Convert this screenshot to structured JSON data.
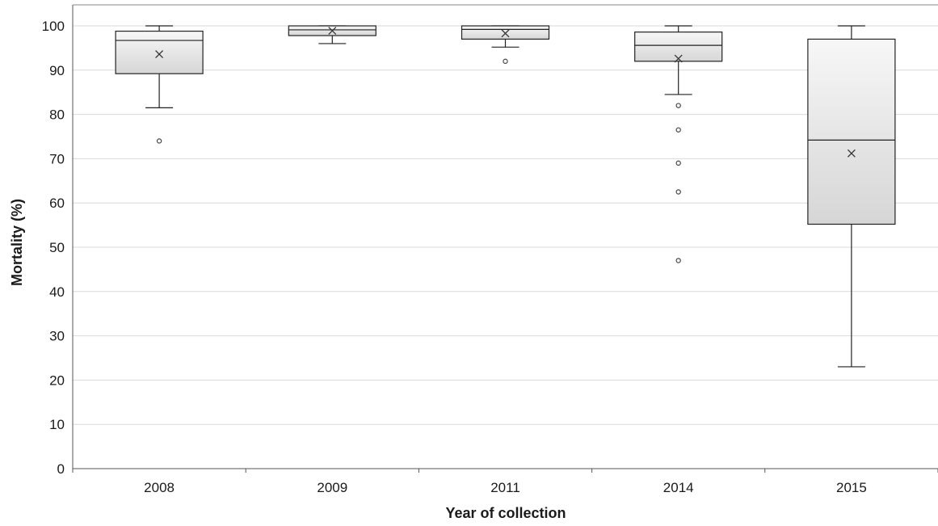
{
  "chart_data": {
    "type": "box",
    "title": "",
    "xlabel": "Year of collection",
    "ylabel": "Mortality (%)",
    "ylim": [
      0,
      100
    ],
    "yticks": [
      0,
      10,
      20,
      30,
      40,
      50,
      60,
      70,
      80,
      90,
      100
    ],
    "grid": true,
    "categories": [
      "2008",
      "2009",
      "2011",
      "2014",
      "2015"
    ],
    "boxes": [
      {
        "category": "2008",
        "min": 81.5,
        "q1": 89.2,
        "median": 96.7,
        "q3": 98.8,
        "max": 100,
        "mean": 93.6,
        "outliers": [
          74
        ]
      },
      {
        "category": "2009",
        "min": 96,
        "q1": 97.8,
        "median": 99.1,
        "q3": 100,
        "max": 100,
        "mean": 98.9,
        "outliers": []
      },
      {
        "category": "2011",
        "min": 95.2,
        "q1": 97,
        "median": 99.2,
        "q3": 100,
        "max": 100,
        "mean": 98.3,
        "outliers": [
          92
        ]
      },
      {
        "category": "2014",
        "min": 84.5,
        "q1": 92,
        "median": 95.6,
        "q3": 98.6,
        "max": 100,
        "mean": 92.6,
        "outliers": [
          82,
          76.5,
          69,
          62.5,
          47
        ]
      },
      {
        "category": "2015",
        "min": 23,
        "q1": 55.2,
        "median": 74.2,
        "q3": 97,
        "max": 100,
        "mean": 71.2,
        "outliers": []
      }
    ]
  }
}
